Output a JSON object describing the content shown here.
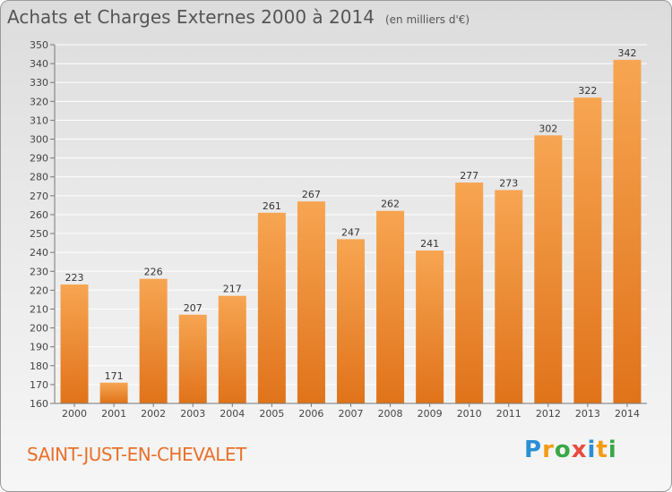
{
  "header": {
    "title": "Achats et Charges Externes 2000 à 2014",
    "unit": "(en milliers d'€)"
  },
  "footer": {
    "place": "SAINT-JUST-EN-CHEVALET",
    "logo": "Proxiti"
  },
  "colors": {
    "bar_top": "#f7a552",
    "bar_bottom": "#e0731a",
    "place_text": "#e8712b"
  },
  "chart_data": {
    "type": "bar",
    "title": "Achats et Charges Externes 2000 à 2014",
    "subtitle": "(en milliers d'€)",
    "xlabel": "",
    "ylabel": "",
    "categories": [
      "2000",
      "2001",
      "2002",
      "2003",
      "2004",
      "2005",
      "2006",
      "2007",
      "2008",
      "2009",
      "2010",
      "2011",
      "2012",
      "2013",
      "2014"
    ],
    "values": [
      223,
      171,
      226,
      207,
      217,
      261,
      267,
      247,
      262,
      241,
      277,
      273,
      302,
      322,
      342
    ],
    "ylim": [
      160,
      350
    ],
    "ytick_step": 10,
    "grid": "horizontal",
    "data_labels": true
  }
}
